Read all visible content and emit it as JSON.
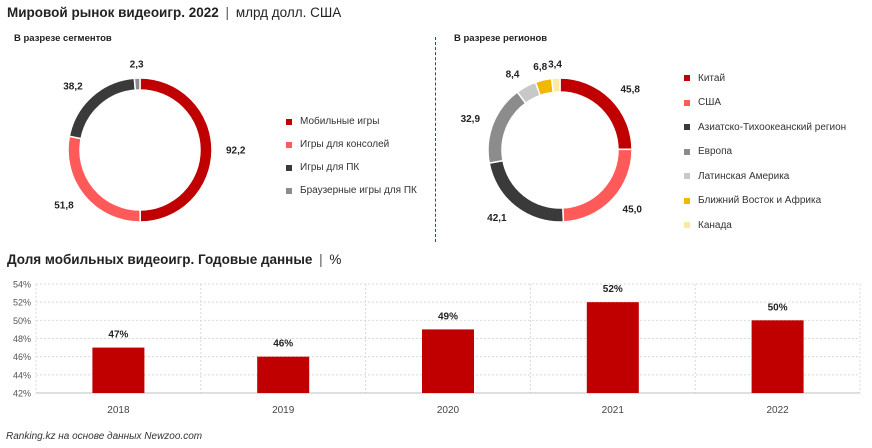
{
  "header": {
    "title_bold": "Мировой рынок видеоигр. 2022",
    "separator": "|",
    "title_unit": "млрд долл. США"
  },
  "segments": {
    "subtitle": "В разрезе сегментов"
  },
  "regions": {
    "subtitle": "В разрезе регионов"
  },
  "bar_section": {
    "title_bold": "Доля мобильных видеоигр. Годовые данные",
    "separator": "|",
    "title_unit": "%"
  },
  "footer": {
    "source": "Ranking.kz на основе данных Newzoo.com"
  },
  "colors": {
    "dark_red": "#c00000",
    "light_red": "#ff5a5a",
    "dark_gray": "#3a3a3a",
    "mid_gray": "#8c8c8c",
    "light_gray": "#c8c8c8",
    "gold": "#f2b800",
    "pale_yellow": "#fde9a0"
  },
  "chart_data": [
    {
      "type": "pie",
      "id": "segments",
      "title": "В разрезе сегментов",
      "labels": [
        "Мобильные игры",
        "Игры для консолей",
        "Игры для ПК",
        "Браузерные игры для ПК"
      ],
      "values": [
        92.2,
        51.8,
        38.2,
        2.3
      ],
      "value_labels": [
        "92,2",
        "51,8",
        "38,2",
        "2,3"
      ],
      "colors": [
        "#c00000",
        "#ff5a5a",
        "#3a3a3a",
        "#8c8c8c"
      ],
      "donut": true,
      "legend": "right"
    },
    {
      "type": "pie",
      "id": "regions",
      "title": "В разрезе регионов",
      "labels": [
        "Китай",
        "США",
        "Азиатско-Тихоокеанский регион",
        "Европа",
        "Латинская Америка",
        "Ближний Восток и Африка",
        "Канада"
      ],
      "values": [
        45.8,
        45.0,
        42.1,
        32.9,
        8.4,
        6.8,
        3.4
      ],
      "value_labels": [
        "45,8",
        "45,0",
        "42,1",
        "32,9",
        "8,4",
        "6,8",
        "3,4"
      ],
      "colors": [
        "#c00000",
        "#ff5a5a",
        "#3a3a3a",
        "#8c8c8c",
        "#c8c8c8",
        "#f2b800",
        "#fde9a0"
      ],
      "donut": true,
      "legend": "right"
    },
    {
      "type": "bar",
      "id": "mobile_share",
      "title": "Доля мобильных видеоигр. Годовые данные",
      "categories": [
        "2018",
        "2019",
        "2020",
        "2021",
        "2022"
      ],
      "values": [
        47,
        46,
        49,
        52,
        50
      ],
      "value_labels": [
        "47%",
        "46%",
        "49%",
        "52%",
        "50%"
      ],
      "ylim": [
        42,
        54
      ],
      "yticks": [
        "42%",
        "44%",
        "46%",
        "48%",
        "50%",
        "52%",
        "54%"
      ],
      "ytick_values": [
        42,
        44,
        46,
        48,
        50,
        52,
        54
      ],
      "grid": true,
      "color": "#c00000"
    }
  ]
}
